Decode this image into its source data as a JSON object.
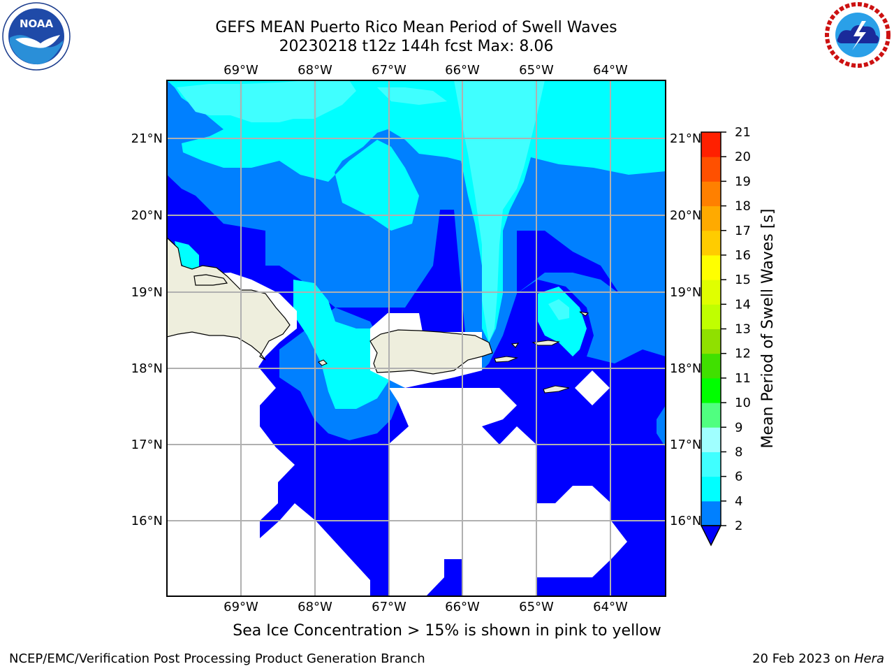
{
  "title_line1": "GEFS MEAN Puerto Rico Mean Period of Swell Waves",
  "title_line2": "20230218 t12z 144h fcst   Max: 8.06",
  "lon_ticks": [
    "69°W",
    "68°W",
    "67°W",
    "66°W",
    "65°W",
    "64°W"
  ],
  "lat_ticks": [
    "21°N",
    "20°N",
    "19°N",
    "18°N",
    "17°N",
    "16°N"
  ],
  "colorbar": {
    "label": "Mean Period of Swell Waves [s]",
    "ticks": [
      "2",
      "4",
      "6",
      "8",
      "9",
      "10",
      "11",
      "12",
      "13",
      "14",
      "15",
      "16",
      "17",
      "18",
      "19",
      "20",
      "21"
    ],
    "colors": [
      "#0000ff",
      "#0080ff",
      "#00ffff",
      "#40ffff",
      "#a0ffff",
      "#50ff80",
      "#00ff00",
      "#40e000",
      "#90e000",
      "#c0ff00",
      "#e0ff00",
      "#ffff00",
      "#ffcc00",
      "#ffaa00",
      "#ff8000",
      "#ff5000",
      "#ff2000",
      "#ff0000"
    ]
  },
  "colors": {
    "land": "#eeeedd",
    "c_lt2": "#0000ff",
    "c_2_4": "#0080ff",
    "c_4_6": "#00ffff",
    "c_6_8": "#40ffff",
    "grid": "#b0b0b0"
  },
  "note": "Sea Ice Concentration > 15% is shown in pink to yellow",
  "footer_left": "NCEP/EMC/Verification Post Processing Product Generation Branch",
  "footer_date": "20 Feb 2023 on ",
  "footer_host": "Hera",
  "logos": [
    "noaa-logo",
    "nws-logo"
  ]
}
